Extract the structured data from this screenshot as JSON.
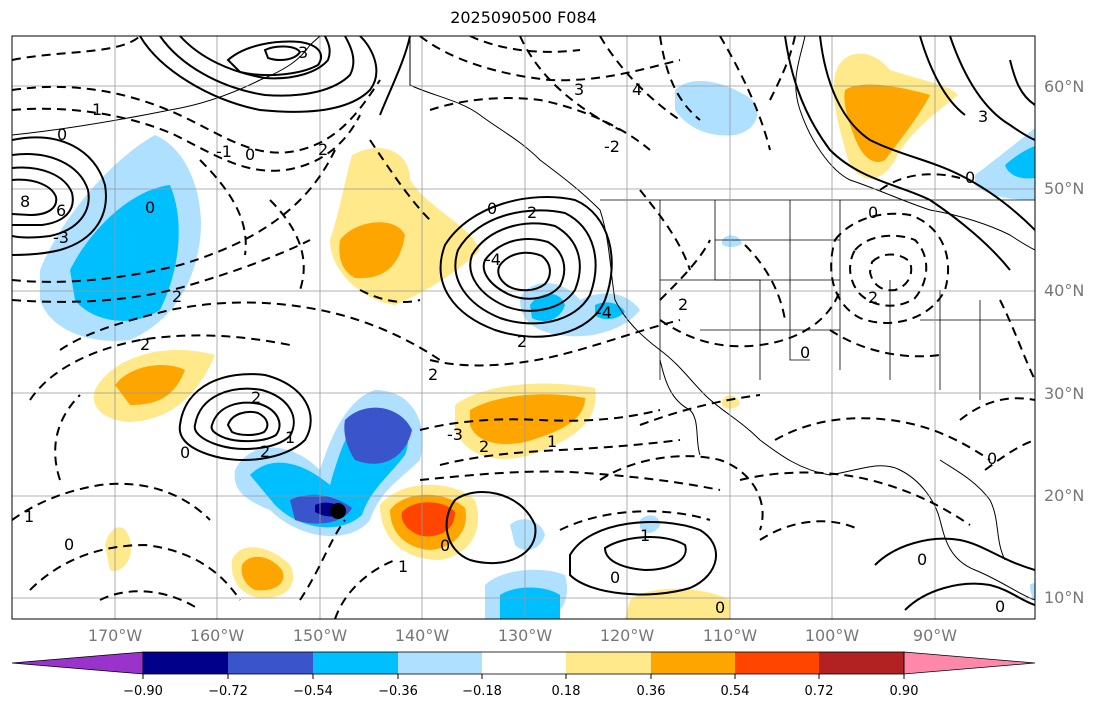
{
  "title": "2025090500 F084",
  "lat_labels": [
    "60°N",
    "50°N",
    "40°N",
    "30°N",
    "20°N",
    "10°N"
  ],
  "lon_labels": [
    "170°W",
    "160°W",
    "150°W",
    "140°W",
    "130°W",
    "120°W",
    "110°W",
    "100°W",
    "90°W"
  ],
  "colorbar": {
    "ticks": [
      "−0.90",
      "−0.72",
      "−0.54",
      "−0.36",
      "−0.18",
      "0.18",
      "0.36",
      "0.54",
      "0.72",
      "0.90"
    ],
    "colors": [
      "#9933cc",
      "#00008b",
      "#3a55cc",
      "#00bfff",
      "#b0e0ff",
      "#ffffff",
      "#ffe98a",
      "#ffa500",
      "#ff4500",
      "#b22222",
      "#ff88aa"
    ]
  },
  "contour_labels": [
    "3",
    "1",
    "4",
    "2",
    "0",
    "-1",
    "-2",
    "8",
    "6",
    "-4",
    "-3",
    "2",
    "-0",
    "1",
    "0",
    "3",
    "-4"
  ]
}
